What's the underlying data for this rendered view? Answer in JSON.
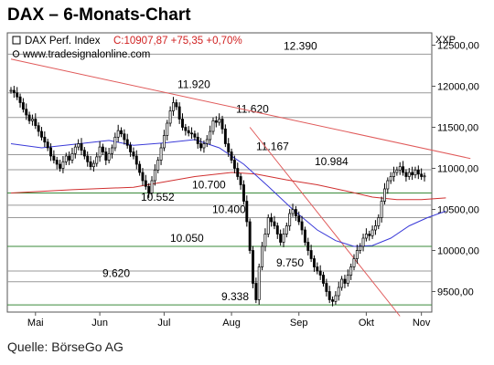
{
  "page": {
    "title": "DAX – 6-Monats-Chart",
    "source": "Quelle: BörseGo AG"
  },
  "chart_data": {
    "type": "candlestick",
    "instrument": "DAX Perf. Index",
    "quote": "C:10907,87 +75,35 +0,70%",
    "website": "www.tradesignalonline.com",
    "currency_label": "XXP",
    "ylim": [
      9250,
      12650
    ],
    "yticks": [
      9500,
      10000,
      10500,
      11000,
      11500,
      12000,
      12500
    ],
    "ytick_labels": [
      "9500,00",
      "10000,00",
      "10500,00",
      "11000,00",
      "11500,00",
      "12000,00",
      "12500,00"
    ],
    "months": [
      "Mai",
      "Jun",
      "Jul",
      "Aug",
      "Sep",
      "Okt",
      "Nov"
    ],
    "month_bar_index": [
      8,
      29,
      50,
      72,
      94,
      116,
      134
    ],
    "levels": [
      {
        "label": "12.390",
        "value": 12390,
        "color": "#999999"
      },
      {
        "label": "11.920",
        "value": 11920,
        "color": "#999999"
      },
      {
        "label": "11.620",
        "value": 11620,
        "color": "#999999"
      },
      {
        "label": "11.167",
        "value": 11167,
        "color": "#999999"
      },
      {
        "label": "10.984",
        "value": 10984,
        "color": "#999999"
      },
      {
        "label": "10.700",
        "value": 10700,
        "color": "#3a8a3a"
      },
      {
        "label": "10.552",
        "value": 10552,
        "color": "#999999"
      },
      {
        "label": "10.400",
        "value": 10400,
        "color": "#999999"
      },
      {
        "label": "10.050",
        "value": 10050,
        "color": "#3a8a3a"
      },
      {
        "label": "9.750",
        "value": 9750,
        "color": "#999999"
      },
      {
        "label": "9.620",
        "value": 9620,
        "color": "#999999"
      },
      {
        "label": "9.338",
        "value": 9338,
        "color": "#3a8a3a"
      }
    ],
    "trendlines": [
      {
        "from": [
          0,
          12330
        ],
        "to": [
          150,
          11120
        ],
        "color": "#e05a5a"
      },
      {
        "from": [
          78,
          11500
        ],
        "to": [
          127,
          9200
        ],
        "color": "#e05a5a"
      }
    ],
    "closes": [
      11950,
      11920,
      11870,
      11800,
      11720,
      11650,
      11580,
      11600,
      11520,
      11450,
      11380,
      11320,
      11250,
      11150,
      11100,
      11050,
      11000,
      11080,
      11150,
      11100,
      11180,
      11260,
      11300,
      11220,
      11150,
      11080,
      11020,
      11060,
      11140,
      11260,
      11200,
      11100,
      11180,
      11250,
      11380,
      11460,
      11420,
      11350,
      11280,
      11200,
      11150,
      11050,
      10950,
      10850,
      10780,
      10700,
      10850,
      10980,
      11100,
      11250,
      11400,
      11550,
      11700,
      11800,
      11750,
      11600,
      11500,
      11460,
      11430,
      11420,
      11380,
      11300,
      11250,
      11300,
      11350,
      11450,
      11580,
      11560,
      11600,
      11480,
      11300,
      11200,
      11100,
      11000,
      10900,
      10800,
      10600,
      10350,
      10000,
      9600,
      9400,
      9800,
      10050,
      10200,
      10400,
      10350,
      10300,
      10200,
      10100,
      10200,
      10300,
      10450,
      10500,
      10420,
      10350,
      10250,
      10100,
      10000,
      9900,
      9800,
      9750,
      9700,
      9600,
      9500,
      9400,
      9380,
      9450,
      9550,
      9650,
      9600,
      9700,
      9800,
      9900,
      10000,
      10050,
      10150,
      10200,
      10180,
      10250,
      10300,
      10400,
      10600,
      10750,
      10850,
      10900,
      10950,
      10980,
      11020,
      10950,
      10900,
      10950,
      10920,
      10980,
      10930,
      10900,
      10907.87
    ],
    "ma_blue": [
      [
        0,
        11300
      ],
      [
        10,
        11250
      ],
      [
        20,
        11290
      ],
      [
        32,
        11340
      ],
      [
        40,
        11280
      ],
      [
        50,
        11310
      ],
      [
        60,
        11350
      ],
      [
        68,
        11250
      ],
      [
        76,
        11050
      ],
      [
        84,
        10780
      ],
      [
        92,
        10500
      ],
      [
        100,
        10250
      ],
      [
        106,
        10120
      ],
      [
        112,
        10050
      ],
      [
        118,
        10060
      ],
      [
        124,
        10150
      ],
      [
        130,
        10300
      ],
      [
        136,
        10400
      ],
      [
        142,
        10480
      ]
    ],
    "ma_red": [
      [
        0,
        10700
      ],
      [
        20,
        10740
      ],
      [
        40,
        10770
      ],
      [
        60,
        10900
      ],
      [
        72,
        10950
      ],
      [
        80,
        10930
      ],
      [
        90,
        10860
      ],
      [
        100,
        10800
      ],
      [
        110,
        10720
      ],
      [
        118,
        10650
      ],
      [
        126,
        10620
      ],
      [
        134,
        10620
      ],
      [
        142,
        10640
      ]
    ],
    "series": [
      {
        "name": "DAX Perf. Index",
        "color": "#000000"
      }
    ]
  }
}
